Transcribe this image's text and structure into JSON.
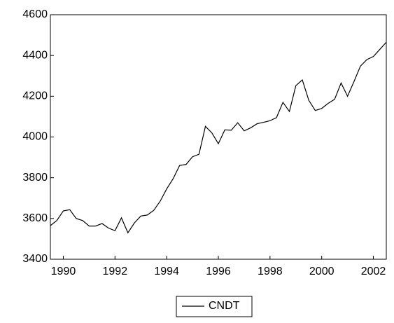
{
  "chart_data": {
    "type": "line",
    "x": [
      1989.5,
      1989.75,
      1990,
      1990.25,
      1990.5,
      1990.75,
      1991,
      1991.25,
      1991.5,
      1991.75,
      1992,
      1992.25,
      1992.5,
      1992.75,
      1993,
      1993.25,
      1993.5,
      1993.75,
      1994,
      1994.25,
      1994.5,
      1994.75,
      1995,
      1995.25,
      1995.5,
      1995.75,
      1996,
      1996.25,
      1996.5,
      1996.75,
      1997,
      1997.25,
      1997.5,
      1997.75,
      1998,
      1998.25,
      1998.5,
      1998.75,
      1999,
      1999.25,
      1999.5,
      1999.75,
      2000,
      2000.25,
      2000.5,
      2000.75,
      2001,
      2001.25,
      2001.5,
      2001.75,
      2002,
      2002.25,
      2002.5
    ],
    "series": [
      {
        "name": "CNDT",
        "color": "#000000",
        "values": [
          3565,
          3590,
          3637,
          3643,
          3600,
          3590,
          3563,
          3563,
          3575,
          3553,
          3540,
          3603,
          3530,
          3578,
          3612,
          3617,
          3640,
          3685,
          3745,
          3795,
          3860,
          3865,
          3903,
          3915,
          4052,
          4020,
          3967,
          4035,
          4033,
          4070,
          4030,
          4045,
          4065,
          4072,
          4080,
          4095,
          4170,
          4125,
          4252,
          4280,
          4180,
          4130,
          4140,
          4165,
          4185,
          4265,
          4200,
          4272,
          4348,
          4380,
          4395,
          4430,
          4465
        ]
      }
    ],
    "xlim": [
      1989.5,
      2002.5
    ],
    "xticks": [
      1990,
      1992,
      1994,
      1996,
      1998,
      2000,
      2002
    ],
    "ylim": [
      3400,
      4600
    ],
    "yticks": [
      3400,
      3600,
      3800,
      4000,
      4200,
      4400,
      4600
    ],
    "grid": false,
    "legend": "bottom"
  }
}
